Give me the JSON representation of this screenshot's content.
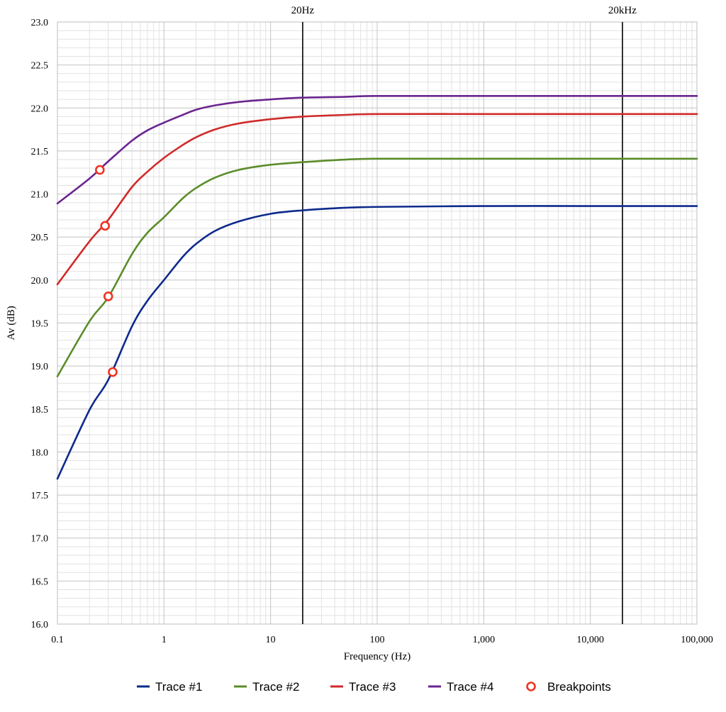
{
  "chart_data": {
    "type": "line",
    "title": "",
    "xlabel": "Frequency (Hz)",
    "ylabel": "Av (dB)",
    "x_scale": "log",
    "xlim": [
      0.1,
      100000
    ],
    "ylim": [
      16.0,
      23.0
    ],
    "grid": true,
    "legend_position": "bottom",
    "x_ticks": [
      0.1,
      1,
      10,
      100,
      1000,
      10000,
      100000
    ],
    "x_tick_labels": [
      "0.1",
      "1",
      "10",
      "100",
      "1,000",
      "10,000",
      "100,000"
    ],
    "y_ticks": [
      16.0,
      16.5,
      17.0,
      17.5,
      18.0,
      18.5,
      19.0,
      19.5,
      20.0,
      20.5,
      21.0,
      21.5,
      22.0,
      22.5,
      23.0
    ],
    "y_tick_labels": [
      "16.0",
      "16.5",
      "17.0",
      "17.5",
      "18.0",
      "18.5",
      "19.0",
      "19.5",
      "20.0",
      "20.5",
      "21.0",
      "21.5",
      "22.0",
      "22.5",
      "23.0"
    ],
    "vertical_markers": [
      {
        "x": 20,
        "label": "20Hz"
      },
      {
        "x": 20000,
        "label": "20kHz"
      }
    ],
    "series": [
      {
        "name": "Trace #1",
        "color": "#0d2a8c",
        "x": [
          0.1,
          0.2,
          0.3,
          0.5,
          0.7,
          1,
          1.5,
          2,
          3,
          5,
          10,
          20,
          50,
          100,
          1000,
          10000,
          100000
        ],
        "y": [
          17.69,
          18.49,
          18.84,
          19.46,
          19.76,
          20.0,
          20.27,
          20.42,
          20.57,
          20.68,
          20.77,
          20.81,
          20.84,
          20.85,
          20.86,
          20.86,
          20.86
        ]
      },
      {
        "name": "Trace #2",
        "color": "#5b8c2a",
        "x": [
          0.1,
          0.2,
          0.3,
          0.5,
          0.7,
          1,
          1.5,
          2,
          3,
          5,
          10,
          20,
          50,
          100,
          1000,
          10000,
          100000
        ],
        "y": [
          18.88,
          19.52,
          19.8,
          20.3,
          20.55,
          20.73,
          20.95,
          21.07,
          21.19,
          21.28,
          21.34,
          21.37,
          21.4,
          21.41,
          21.41,
          21.41,
          21.41
        ]
      },
      {
        "name": "Trace #3",
        "color": "#d02a2a",
        "x": [
          0.1,
          0.2,
          0.3,
          0.5,
          0.7,
          1,
          1.5,
          2,
          3,
          5,
          10,
          20,
          50,
          100,
          1000,
          10000,
          100000
        ],
        "y": [
          19.95,
          20.45,
          20.7,
          21.08,
          21.26,
          21.42,
          21.57,
          21.66,
          21.75,
          21.82,
          21.87,
          21.9,
          21.92,
          21.93,
          21.93,
          21.93,
          21.93
        ]
      },
      {
        "name": "Trace #4",
        "color": "#6a2590",
        "x": [
          0.1,
          0.2,
          0.3,
          0.5,
          0.7,
          1,
          1.5,
          2,
          3,
          5,
          10,
          20,
          50,
          100,
          1000,
          10000,
          100000
        ],
        "y": [
          20.89,
          21.18,
          21.38,
          21.62,
          21.74,
          21.83,
          21.92,
          21.98,
          22.03,
          22.07,
          22.1,
          22.12,
          22.13,
          22.14,
          22.14,
          22.14,
          22.14
        ]
      }
    ],
    "breakpoints": {
      "name": "Breakpoints",
      "color": "#ee3322",
      "points": [
        {
          "x": 0.25,
          "y": 21.28
        },
        {
          "x": 0.28,
          "y": 20.63
        },
        {
          "x": 0.3,
          "y": 19.81
        },
        {
          "x": 0.33,
          "y": 18.93
        }
      ]
    }
  }
}
